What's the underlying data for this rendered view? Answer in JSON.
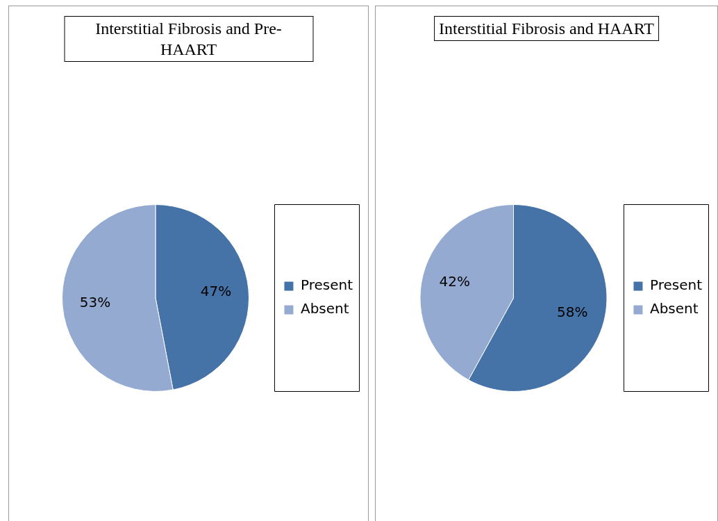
{
  "chart_data": [
    {
      "type": "pie",
      "title": "Interstitial Fibrosis and Pre-HAART",
      "categories": [
        "Present",
        "Absent"
      ],
      "values": [
        47,
        53
      ],
      "value_labels": [
        "47%",
        "53%"
      ],
      "colors": [
        "#4572a7",
        "#95aad1"
      ],
      "legend": "right"
    },
    {
      "type": "pie",
      "title": "Interstitial Fibrosis and HAART",
      "categories": [
        "Present",
        "Absent"
      ],
      "values": [
        58,
        42
      ],
      "value_labels": [
        "58%",
        "42%"
      ],
      "colors": [
        "#4572a7",
        "#95aad1"
      ],
      "legend": "right"
    }
  ]
}
